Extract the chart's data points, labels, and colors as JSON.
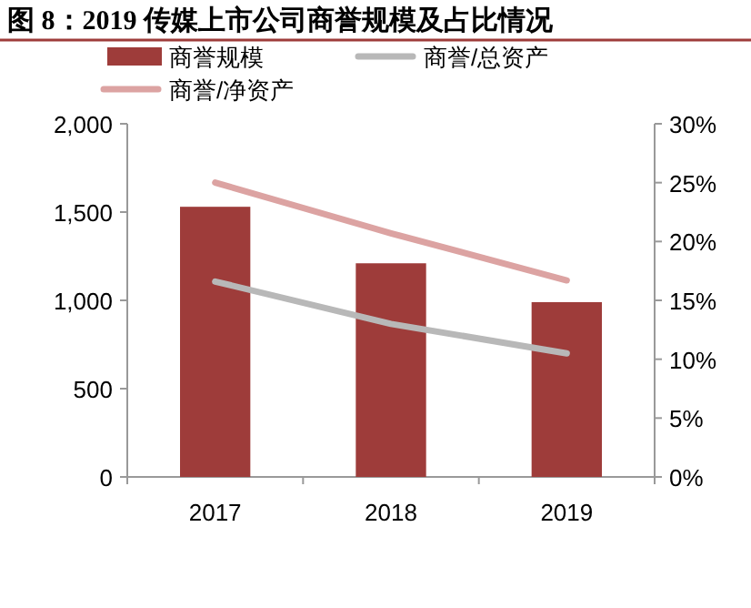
{
  "chart_data": {
    "type": "bar",
    "title": "图 8：2019 传媒上市公司商誉规模及占比情况",
    "categories": [
      "2017",
      "2018",
      "2019"
    ],
    "series": [
      {
        "name": "商誉规模",
        "color": "#9e3c3a",
        "values": [
          1530,
          1210,
          990
        ]
      },
      {
        "name": "商誉/总资产",
        "type": "line",
        "axis": "y2",
        "color": "#b8b8b8",
        "values": [
          16.6,
          13,
          10.5
        ]
      },
      {
        "name": "商誉/净资产",
        "type": "line",
        "axis": "y2",
        "color": "#dca3a2",
        "values": [
          25,
          20.7,
          16.7
        ]
      }
    ],
    "ylim": [
      0,
      2000
    ],
    "yticks": [
      0,
      {
        "value": 500,
        "label": "500"
      },
      {
        "value": 1000,
        "label": "1,000"
      },
      {
        "value": 1500,
        "label": "1,500"
      },
      {
        "value": 2000,
        "label": "2,000"
      }
    ],
    "y2lim": [
      0,
      30
    ],
    "y2ticks": [
      {
        "value": 0,
        "label": "0%"
      },
      {
        "value": 5,
        "label": "5%"
      },
      {
        "value": 10,
        "label": "10%"
      },
      {
        "value": 15,
        "label": "15%"
      },
      {
        "value": 20,
        "label": "20%"
      },
      {
        "value": 25,
        "label": "25%"
      },
      {
        "value": 30,
        "label": "30%"
      }
    ],
    "legend": "top",
    "grid": false
  }
}
